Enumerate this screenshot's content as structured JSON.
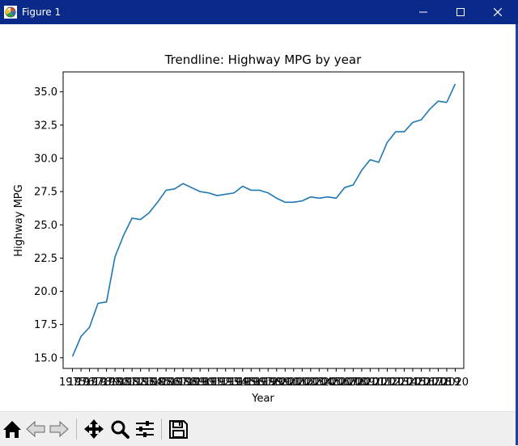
{
  "window": {
    "title": "Figure 1",
    "minimize_icon": "minimize-icon",
    "maximize_icon": "maximize-icon",
    "close_icon": "close-icon"
  },
  "toolbar": {
    "buttons": [
      {
        "name": "home-button",
        "icon": "home-icon"
      },
      {
        "name": "back-button",
        "icon": "back-arrow-icon"
      },
      {
        "name": "forward-button",
        "icon": "forward-arrow-icon"
      },
      {
        "name": "pan-button",
        "icon": "move-icon"
      },
      {
        "name": "zoom-button",
        "icon": "magnifier-icon"
      },
      {
        "name": "configure-subplots-button",
        "icon": "sliders-icon"
      },
      {
        "name": "save-button",
        "icon": "floppy-disk-icon"
      }
    ]
  },
  "chart_data": {
    "type": "line",
    "title": "Trendline: Highway MPG by year",
    "xlabel": "Year",
    "ylabel": "Highway MPG",
    "xlim": [
      1973.9,
      2021
    ],
    "ylim": [
      14.2,
      36.5
    ],
    "yticks": [
      15.0,
      17.5,
      20.0,
      22.5,
      25.0,
      27.5,
      30.0,
      32.5,
      35.0
    ],
    "ytick_labels": [
      "15.0",
      "17.5",
      "20.0",
      "22.5",
      "25.0",
      "27.5",
      "30.0",
      "32.5",
      "35.0"
    ],
    "xticks": [
      1975,
      1976,
      1977,
      1978,
      1979,
      1980,
      1981,
      1982,
      1983,
      1984,
      1985,
      1986,
      1987,
      1988,
      1989,
      1990,
      1991,
      1992,
      1993,
      1994,
      1995,
      1996,
      1997,
      1998,
      1999,
      2000,
      2001,
      2002,
      2003,
      2004,
      2005,
      2006,
      2007,
      2008,
      2009,
      2010,
      2011,
      2012,
      2013,
      2014,
      2015,
      2016,
      2017,
      2018,
      2019,
      2020
    ],
    "xtick_labels": [
      "1975",
      "1976",
      "1977",
      "1978",
      "1979",
      "1980",
      "1981",
      "1982",
      "1983",
      "1984",
      "1985",
      "1986",
      "1987",
      "1988",
      "1989",
      "1990",
      "1991",
      "1992",
      "1993",
      "1994",
      "1995",
      "1996",
      "1997",
      "1998",
      "1999",
      "2000",
      "2001",
      "2002",
      "2003",
      "2004",
      "2005",
      "2006",
      "2007",
      "2008",
      "2009",
      "2010",
      "2011",
      "2012",
      "2013",
      "2014",
      "2015",
      "2016",
      "2017",
      "2018",
      "2019",
      "2020"
    ],
    "grid": false,
    "line_color": "#1f77b4",
    "series": [
      {
        "x": [
          1975,
          1976,
          1977,
          1978,
          1979,
          1980,
          1981,
          1982,
          1983,
          1984,
          1985,
          1986,
          1987,
          1988,
          1989,
          1990,
          1991,
          1992,
          1993,
          1994,
          1995,
          1996,
          1997,
          1998,
          1999,
          2000,
          2001,
          2002,
          2003,
          2004,
          2005,
          2006,
          2007,
          2008,
          2009,
          2010,
          2011,
          2012,
          2013,
          2014,
          2015,
          2016,
          2017,
          2018,
          2019
        ],
        "values": [
          15.1,
          16.6,
          17.3,
          19.1,
          19.2,
          22.6,
          24.2,
          25.5,
          25.4,
          25.9,
          26.7,
          27.6,
          27.7,
          28.1,
          27.8,
          27.5,
          27.4,
          27.2,
          27.3,
          27.4,
          27.9,
          27.6,
          27.6,
          27.4,
          27.0,
          26.7,
          26.7,
          26.8,
          27.1,
          27.0,
          27.1,
          27.0,
          27.8,
          28.0,
          29.1,
          29.9,
          29.7,
          31.2,
          32.0,
          32.0,
          32.7,
          32.9,
          33.7,
          34.3,
          34.2
        ]
      },
      {
        "x": [
          2019,
          2020
        ],
        "values": [
          34.2,
          35.6
        ]
      }
    ]
  }
}
